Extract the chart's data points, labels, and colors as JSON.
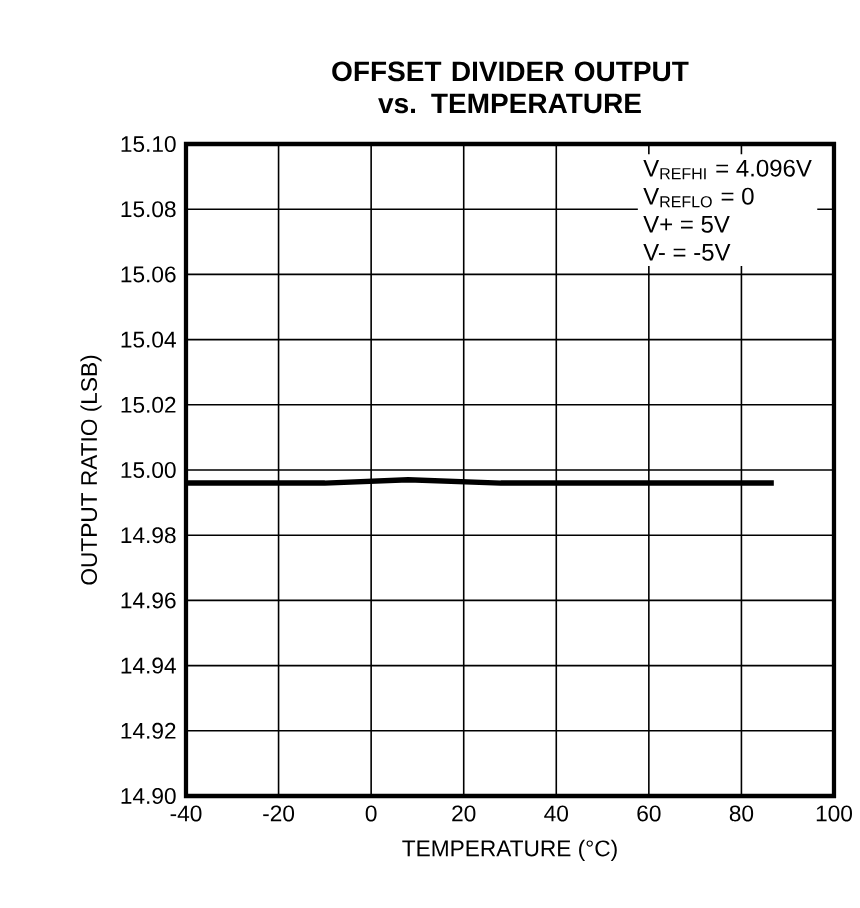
{
  "chart_data": {
    "type": "line",
    "title": "OFFSET DIVIDER OUTPUT vs. TEMPERATURE",
    "xlabel": "TEMPERATURE (°C)",
    "ylabel": "OUTPUT RATIO (LSB)",
    "x": [
      -40,
      -10,
      8,
      28,
      60,
      87
    ],
    "series": [
      {
        "color": "#000000",
        "values": [
          14.996,
          14.996,
          14.997,
          14.996,
          14.996,
          14.996
        ]
      }
    ],
    "xlim": [
      -40,
      100
    ],
    "xticks": [
      -40,
      -20,
      0,
      20,
      40,
      60,
      80,
      100
    ],
    "ylim": [
      14.9,
      15.1
    ],
    "yticks": [
      {
        "value": 14.9,
        "label": "14.90"
      },
      14.92,
      14.94,
      14.96,
      14.98,
      {
        "value": 15.0,
        "label": "15.00"
      },
      15.02,
      15.04,
      15.06,
      15.08,
      {
        "value": 15.1,
        "label": "15.10"
      }
    ],
    "annotations": [
      "V$_{REFHI}$ = 4.096V",
      "V$_{REFLO}$ = 0",
      "V+ = 5V",
      "V- = -5V"
    ],
    "grid": true,
    "marker": "none",
    "line_style": "solid"
  }
}
